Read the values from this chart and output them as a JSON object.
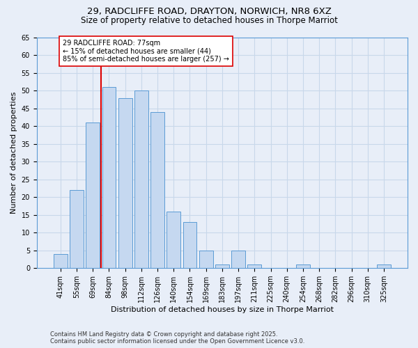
{
  "title_line1": "29, RADCLIFFE ROAD, DRAYTON, NORWICH, NR8 6XZ",
  "title_line2": "Size of property relative to detached houses in Thorpe Marriot",
  "xlabel": "Distribution of detached houses by size in Thorpe Marriot",
  "ylabel": "Number of detached properties",
  "categories": [
    "41sqm",
    "55sqm",
    "69sqm",
    "84sqm",
    "98sqm",
    "112sqm",
    "126sqm",
    "140sqm",
    "154sqm",
    "169sqm",
    "183sqm",
    "197sqm",
    "211sqm",
    "225sqm",
    "240sqm",
    "254sqm",
    "268sqm",
    "282sqm",
    "296sqm",
    "310sqm",
    "325sqm"
  ],
  "values": [
    4,
    22,
    41,
    51,
    48,
    50,
    44,
    16,
    13,
    5,
    1,
    5,
    1,
    0,
    0,
    1,
    0,
    0,
    0,
    0,
    1
  ],
  "bar_color": "#c5d8f0",
  "bar_edge_color": "#5b9bd5",
  "grid_color": "#c8d8ea",
  "background_color": "#e8eef8",
  "vline_x_index": 2,
  "vline_color": "#dd0000",
  "annotation_text": "29 RADCLIFFE ROAD: 77sqm\n← 15% of detached houses are smaller (44)\n85% of semi-detached houses are larger (257) →",
  "annotation_box_color": "#ffffff",
  "annotation_box_edge_color": "#dd0000",
  "ylim": [
    0,
    65
  ],
  "yticks": [
    0,
    5,
    10,
    15,
    20,
    25,
    30,
    35,
    40,
    45,
    50,
    55,
    60,
    65
  ],
  "footer_line1": "Contains HM Land Registry data © Crown copyright and database right 2025.",
  "footer_line2": "Contains public sector information licensed under the Open Government Licence v3.0.",
  "title_fontsize": 9.5,
  "subtitle_fontsize": 8.5,
  "axis_label_fontsize": 8,
  "tick_fontsize": 7,
  "annotation_fontsize": 7,
  "footer_fontsize": 6
}
